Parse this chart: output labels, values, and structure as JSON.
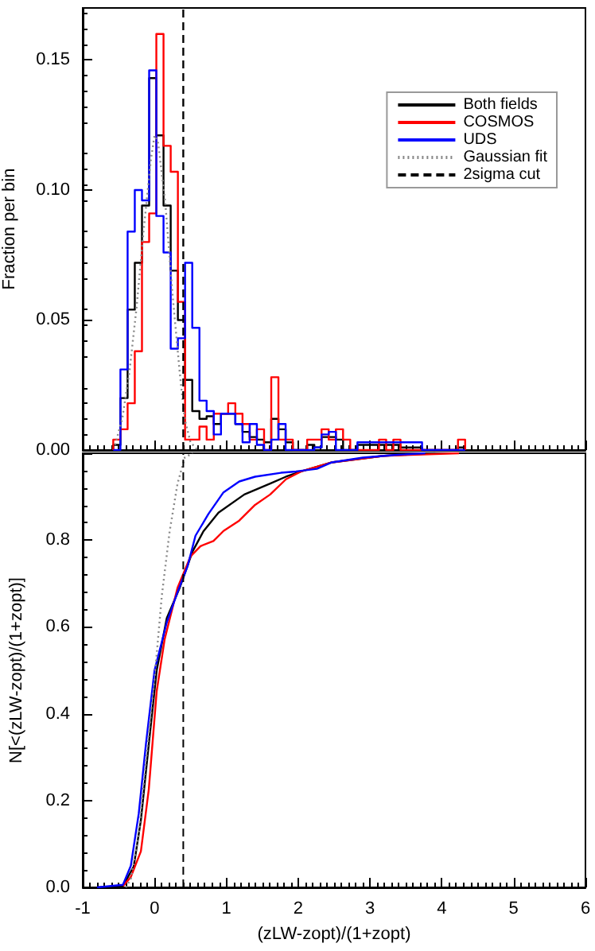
{
  "chart_data": [
    {
      "type": "histogram",
      "ylabel": "Fraction per bin",
      "legend": "top right",
      "tick_labels": "y",
      "bins": [
        -0.575,
        -0.475,
        -0.375,
        -0.275,
        -0.175,
        -0.075,
        0.025,
        0.125,
        0.225,
        0.325,
        0.425,
        0.525,
        0.625,
        0.725,
        0.825,
        0.925,
        1.025,
        1.125,
        1.225,
        1.325,
        1.425,
        1.525,
        1.625,
        1.725,
        1.825,
        1.925,
        2.025,
        2.125,
        2.225,
        2.325,
        2.425,
        2.525,
        2.625,
        2.725,
        2.825,
        2.925,
        3.025,
        3.125,
        3.225,
        3.325,
        3.425,
        3.525,
        3.625,
        3.725,
        3.825,
        3.925,
        4.025,
        4.125,
        4.225,
        4.325
      ],
      "series": [
        {
          "name": "Both fields",
          "color": "#000000",
          "values": [
            0.002,
            0.02,
            0.054,
            0.072,
            0.094,
            0.143,
            0.121,
            0.094,
            0.069,
            0.05,
            0.027,
            0.015,
            0.012,
            0.013,
            0.01,
            0.014,
            0.014,
            0.01,
            0.007,
            0.005,
            0.004,
            0.003,
            0.012,
            0.008,
            0.003,
            0,
            0,
            0.002,
            0.001,
            0.005,
            0.005,
            0.004,
            0,
            0,
            0.002,
            0.002,
            0.002,
            0.002,
            0.002,
            0.002,
            0.001,
            0.001,
            0.001,
            0,
            0,
            0,
            0,
            0,
            0.001
          ]
        },
        {
          "name": "COSMOS",
          "color": "#ff0000",
          "values": [
            0.004,
            0.008,
            0.018,
            0.038,
            0.08,
            0.091,
            0.16,
            0.117,
            0.107,
            0.057,
            0.004,
            0.004,
            0.009,
            0.004,
            0.014,
            0.014,
            0.018,
            0.014,
            0.01,
            0.004,
            0.008,
            0,
            0.028,
            0.004,
            0.004,
            0,
            0,
            0.004,
            0.004,
            0.008,
            0.004,
            0.008,
            0.004,
            0,
            0,
            0,
            0,
            0.004,
            0,
            0.004,
            0,
            0,
            0,
            0,
            0,
            0,
            0,
            0,
            0.004
          ]
        },
        {
          "name": "UDS",
          "color": "#0000ff",
          "values": [
            0,
            0.031,
            0.084,
            0.1,
            0.096,
            0.146,
            0.09,
            0.076,
            0.039,
            0.043,
            0.072,
            0.047,
            0.019,
            0.015,
            0.006,
            0.014,
            0.014,
            0.01,
            0.003,
            0.01,
            0.002,
            0,
            0.004,
            0.01,
            0,
            0,
            0,
            0,
            0.001,
            0.006,
            0.007,
            0,
            0,
            0,
            0.003,
            0.003,
            0.003,
            0.003,
            0.003,
            0.003,
            0.003,
            0.003,
            0.003,
            0,
            0,
            0,
            0,
            0,
            0
          ]
        },
        {
          "name": "Gaussian fit",
          "type": "line",
          "color": "#888888",
          "line_style": "dotted",
          "x": [
            -0.55,
            -0.45,
            -0.35,
            -0.25,
            -0.15,
            -0.05,
            0.0,
            0.05,
            0.15,
            0.25,
            0.35,
            0.42,
            0.5,
            0.6
          ],
          "values": [
            0.002,
            0.012,
            0.03,
            0.055,
            0.085,
            0.112,
            0.121,
            0.118,
            0.095,
            0.06,
            0.03,
            0.012,
            0.003,
            0
          ]
        },
        {
          "name": "2sigma cut",
          "type": "line",
          "color": "#000000",
          "line_style": "dashed",
          "x": [
            0.4,
            0.4
          ],
          "values": [
            0,
            0.17
          ]
        }
      ],
      "xlim": [
        -1,
        6
      ],
      "xticks": [
        -1,
        0,
        1,
        2,
        3,
        4,
        5,
        6
      ],
      "ylim": [
        0,
        0.17
      ],
      "yticks": [
        {
          "value": 0,
          "label": "0.00"
        },
        {
          "value": 0.05,
          "label": "0.05"
        },
        {
          "value": 0.1,
          "label": "0.10"
        },
        {
          "value": 0.15,
          "label": "0.15"
        }
      ]
    },
    {
      "type": "line",
      "xlabel": "(zLW-zopt)/(1+zopt)",
      "ylabel": "N[<(zLW-zopt)/(1+zopt)]",
      "series": [
        {
          "color": "#000000",
          "x": [
            -0.8,
            -0.44,
            -0.29,
            -0.19,
            -0.08,
            0.03,
            0.17,
            0.35,
            0.53,
            0.68,
            0.89,
            1.25,
            1.61,
            1.83,
            2.04,
            2.47,
            3.19,
            3.91
          ],
          "values": [
            0,
            0.003,
            0.048,
            0.155,
            0.33,
            0.5,
            0.62,
            0.69,
            0.774,
            0.82,
            0.863,
            0.905,
            0.93,
            0.946,
            0.958,
            0.979,
            0.994,
            1.0
          ]
        },
        {
          "color": "#ff0000",
          "x": [
            -0.44,
            -0.33,
            -0.19,
            -0.08,
            0.03,
            0.14,
            0.32,
            0.5,
            0.64,
            0.82,
            0.96,
            1.18,
            1.4,
            1.61,
            1.83,
            2.04,
            2.47,
            3.19,
            4.24
          ],
          "values": [
            0.003,
            0.024,
            0.083,
            0.226,
            0.452,
            0.571,
            0.69,
            0.762,
            0.786,
            0.798,
            0.821,
            0.845,
            0.881,
            0.905,
            0.94,
            0.958,
            0.979,
            0.994,
            1.0
          ]
        },
        {
          "color": "#0000ff",
          "x": [
            -0.8,
            -0.44,
            -0.33,
            -0.22,
            -0.12,
            0,
            0.17,
            0.32,
            0.46,
            0.57,
            0.75,
            0.96,
            1.18,
            1.4,
            1.76,
            1.97,
            2.26,
            2.47,
            2.9,
            3.34,
            3.77
          ],
          "values": [
            0,
            0.006,
            0.05,
            0.17,
            0.33,
            0.5,
            0.61,
            0.68,
            0.74,
            0.81,
            0.86,
            0.91,
            0.935,
            0.946,
            0.955,
            0.958,
            0.964,
            0.979,
            0.99,
            0.996,
            1.0
          ]
        },
        {
          "color": "#888888",
          "line_style": "dotted",
          "x": [
            -0.4,
            -0.33,
            -0.22,
            -0.12,
            0,
            0.1,
            0.21,
            0.32,
            0.42,
            0.53
          ],
          "values": [
            0,
            0.02,
            0.12,
            0.29,
            0.48,
            0.67,
            0.82,
            0.93,
            0.99,
            1.0
          ]
        }
      ],
      "ref_lines": [
        {
          "axis": "x",
          "value": 0.4,
          "color": "#000000",
          "line_style": "dashed"
        }
      ],
      "xlim": [
        -1,
        6
      ],
      "xticks": [
        -1,
        0,
        1,
        2,
        3,
        4,
        5,
        6
      ],
      "ylim": [
        0,
        1
      ],
      "yticks": [
        {
          "value": 0,
          "label": "0.0"
        },
        0.2,
        0.4,
        0.6,
        0.8,
        {
          "value": 1,
          "label": null
        }
      ]
    }
  ]
}
